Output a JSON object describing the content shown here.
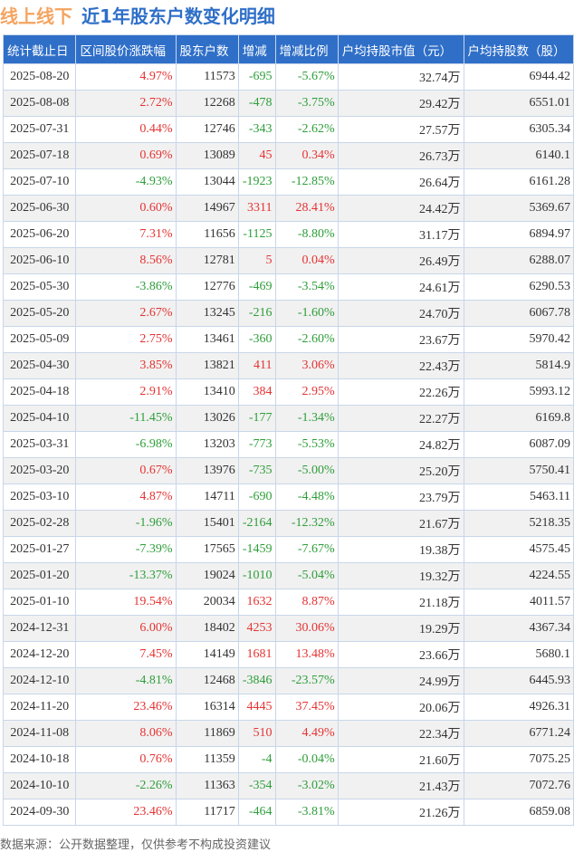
{
  "title": {
    "brand": "线上线下",
    "text": "近1年股东户数变化明细"
  },
  "colors": {
    "up": "#e53333",
    "down": "#2e9e3a",
    "header": "#2f6fc8"
  },
  "columns": [
    "统计截止日",
    "区间股价涨跌幅",
    "股东户数",
    "增减",
    "增减比例",
    "户均持股市值（元）",
    "户均持股数（股）"
  ],
  "rows": [
    [
      "2025-08-20",
      "4.97%",
      "11573",
      "-695",
      "-5.67%",
      "32.74万",
      "6944.42"
    ],
    [
      "2025-08-08",
      "2.72%",
      "12268",
      "-478",
      "-3.75%",
      "29.42万",
      "6551.01"
    ],
    [
      "2025-07-31",
      "0.44%",
      "12746",
      "-343",
      "-2.62%",
      "27.57万",
      "6305.34"
    ],
    [
      "2025-07-18",
      "0.69%",
      "13089",
      "45",
      "0.34%",
      "26.73万",
      "6140.1"
    ],
    [
      "2025-07-10",
      "-4.93%",
      "13044",
      "-1923",
      "-12.85%",
      "26.64万",
      "6161.28"
    ],
    [
      "2025-06-30",
      "0.60%",
      "14967",
      "3311",
      "28.41%",
      "24.42万",
      "5369.67"
    ],
    [
      "2025-06-20",
      "7.31%",
      "11656",
      "-1125",
      "-8.80%",
      "31.17万",
      "6894.97"
    ],
    [
      "2025-06-10",
      "8.56%",
      "12781",
      "5",
      "0.04%",
      "26.49万",
      "6288.07"
    ],
    [
      "2025-05-30",
      "-3.86%",
      "12776",
      "-469",
      "-3.54%",
      "24.61万",
      "6290.53"
    ],
    [
      "2025-05-20",
      "2.67%",
      "13245",
      "-216",
      "-1.60%",
      "24.70万",
      "6067.78"
    ],
    [
      "2025-05-09",
      "2.75%",
      "13461",
      "-360",
      "-2.60%",
      "23.67万",
      "5970.42"
    ],
    [
      "2025-04-30",
      "3.85%",
      "13821",
      "411",
      "3.06%",
      "22.43万",
      "5814.9"
    ],
    [
      "2025-04-18",
      "2.91%",
      "13410",
      "384",
      "2.95%",
      "22.26万",
      "5993.12"
    ],
    [
      "2025-04-10",
      "-11.45%",
      "13026",
      "-177",
      "-1.34%",
      "22.27万",
      "6169.8"
    ],
    [
      "2025-03-31",
      "-6.98%",
      "13203",
      "-773",
      "-5.53%",
      "24.82万",
      "6087.09"
    ],
    [
      "2025-03-20",
      "0.67%",
      "13976",
      "-735",
      "-5.00%",
      "25.20万",
      "5750.41"
    ],
    [
      "2025-03-10",
      "4.87%",
      "14711",
      "-690",
      "-4.48%",
      "23.79万",
      "5463.11"
    ],
    [
      "2025-02-28",
      "-1.96%",
      "15401",
      "-2164",
      "-12.32%",
      "21.67万",
      "5218.35"
    ],
    [
      "2025-01-27",
      "-7.39%",
      "17565",
      "-1459",
      "-7.67%",
      "19.38万",
      "4575.45"
    ],
    [
      "2025-01-20",
      "-13.37%",
      "19024",
      "-1010",
      "-5.04%",
      "19.32万",
      "4224.55"
    ],
    [
      "2025-01-10",
      "19.54%",
      "20034",
      "1632",
      "8.87%",
      "21.18万",
      "4011.57"
    ],
    [
      "2024-12-31",
      "6.00%",
      "18402",
      "4253",
      "30.06%",
      "19.29万",
      "4367.34"
    ],
    [
      "2024-12-20",
      "7.45%",
      "14149",
      "1681",
      "13.48%",
      "23.66万",
      "5680.1"
    ],
    [
      "2024-12-10",
      "-4.81%",
      "12468",
      "-3846",
      "-23.57%",
      "24.99万",
      "6445.93"
    ],
    [
      "2024-11-20",
      "23.46%",
      "16314",
      "4445",
      "37.45%",
      "20.06万",
      "4926.31"
    ],
    [
      "2024-11-08",
      "8.06%",
      "11869",
      "510",
      "4.49%",
      "22.34万",
      "6771.24"
    ],
    [
      "2024-10-18",
      "0.76%",
      "11359",
      "-4",
      "-0.04%",
      "21.60万",
      "7075.25"
    ],
    [
      "2024-10-10",
      "-2.26%",
      "11363",
      "-354",
      "-3.02%",
      "21.43万",
      "7072.76"
    ],
    [
      "2024-09-30",
      "23.46%",
      "11717",
      "-464",
      "-3.81%",
      "21.26万",
      "6859.08"
    ]
  ],
  "footer": "数据来源：公开数据整理，仅供参考不构成投资建议"
}
